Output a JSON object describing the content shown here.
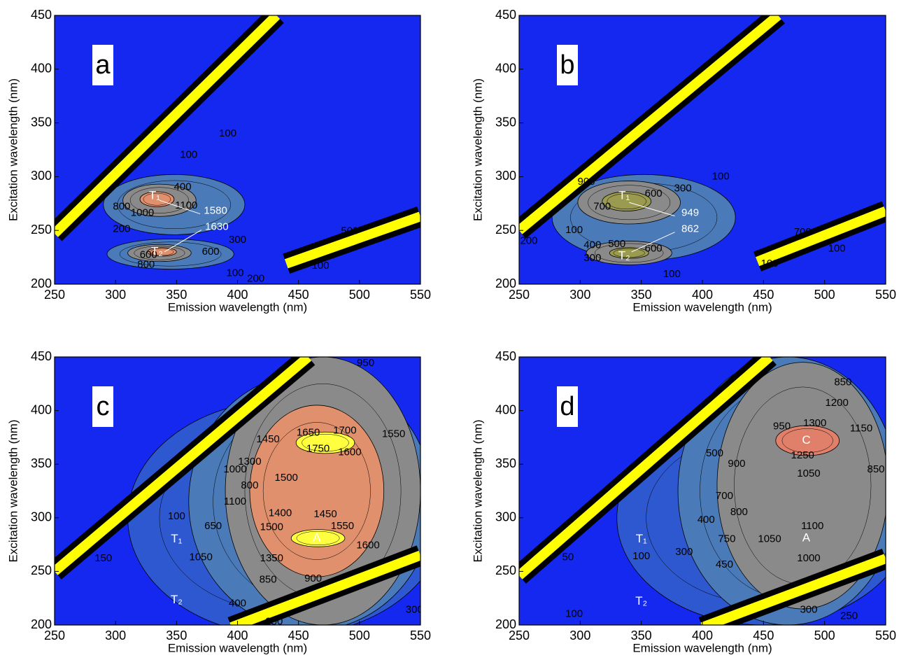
{
  "chart_data": [
    {
      "type": "contour",
      "panel": "a",
      "xlabel": "Emission wavelength (nm)",
      "ylabel": "Excitation wavelength (nm)",
      "xlim": [
        250,
        550
      ],
      "ylim": [
        200,
        450
      ],
      "xticks": [
        250,
        300,
        350,
        400,
        450,
        500,
        550
      ],
      "yticks": [
        200,
        250,
        300,
        350,
        400,
        450
      ],
      "background": "#1428f0",
      "bands": [
        {
          "x": [
            250,
            432
          ],
          "y": [
            247,
            450
          ]
        },
        {
          "x": [
            440,
            550
          ],
          "y": [
            219,
            263
          ]
        }
      ],
      "regions": [
        {
          "level": 200,
          "cx": 348,
          "cy": 274,
          "rx": 58,
          "ry": 28,
          "color": "#4a7ab8"
        },
        {
          "level": 200,
          "cx": 345,
          "cy": 228,
          "rx": 52,
          "ry": 14,
          "color": "#4a7ab8"
        },
        {
          "level": 800,
          "cx": 336,
          "cy": 278,
          "rx": 30,
          "ry": 15,
          "color": "#8a8a8a"
        },
        {
          "level": 800,
          "cx": 336,
          "cy": 229,
          "rx": 26,
          "ry": 8,
          "color": "#8a8a8a"
        },
        {
          "level": 1300,
          "cx": 334,
          "cy": 279,
          "rx": 14,
          "ry": 7,
          "color": "#e0906c"
        },
        {
          "level": 1300,
          "cx": 338,
          "cy": 230,
          "rx": 12,
          "ry": 4,
          "color": "#e0906c"
        }
      ],
      "contour_labels": [
        {
          "value": 1000,
          "x": 322,
          "y": 266
        },
        {
          "value": 1100,
          "x": 358,
          "y": 273
        },
        {
          "value": 800,
          "x": 305,
          "y": 272
        },
        {
          "value": 400,
          "x": 355,
          "y": 290
        },
        {
          "value": 600,
          "x": 327,
          "y": 227
        },
        {
          "value": 800,
          "x": 325,
          "y": 218
        },
        {
          "value": 300,
          "x": 400,
          "y": 241
        },
        {
          "value": 100,
          "x": 398,
          "y": 210
        },
        {
          "value": 200,
          "x": 415,
          "y": 205
        },
        {
          "value": 100,
          "x": 468,
          "y": 217
        },
        {
          "value": 100,
          "x": 392,
          "y": 340
        },
        {
          "value": 100,
          "x": 360,
          "y": 320
        },
        {
          "value": 200,
          "x": 305,
          "y": 251
        },
        {
          "value": 500,
          "x": 492,
          "y": 249
        },
        {
          "value": 600,
          "x": 378,
          "y": 230
        }
      ],
      "peaks": [
        {
          "label": "T₁",
          "x": 332,
          "y": 282
        },
        {
          "label": "T₂",
          "x": 334,
          "y": 230
        }
      ],
      "callouts": [
        {
          "value": 1580,
          "x": 382,
          "y": 268,
          "target": [
            336,
            278
          ]
        },
        {
          "value": 1630,
          "x": 383,
          "y": 253,
          "target": [
            340,
            230
          ]
        }
      ]
    },
    {
      "type": "contour",
      "panel": "b",
      "xlabel": "Emission wavelength (nm)",
      "ylabel": "Excitation wavelength (nm)",
      "xlim": [
        250,
        550
      ],
      "ylim": [
        200,
        450
      ],
      "xticks": [
        250,
        300,
        350,
        400,
        450,
        500,
        550
      ],
      "yticks": [
        200,
        250,
        300,
        350,
        400,
        450
      ],
      "background": "#1428f0",
      "bands": [
        {
          "x": [
            250,
            462
          ],
          "y": [
            250,
            450
          ]
        },
        {
          "x": [
            445,
            550
          ],
          "y": [
            221,
            268
          ]
        }
      ],
      "regions": [
        {
          "level": 100,
          "cx": 352,
          "cy": 262,
          "rx": 75,
          "ry": 40,
          "color": "#4a7ab8"
        },
        {
          "level": 300,
          "cx": 340,
          "cy": 276,
          "rx": 42,
          "ry": 20,
          "color": "#8a8a8a"
        },
        {
          "level": 300,
          "cx": 340,
          "cy": 229,
          "rx": 35,
          "ry": 11,
          "color": "#8a8a8a"
        },
        {
          "level": 700,
          "cx": 338,
          "cy": 277,
          "rx": 20,
          "ry": 9,
          "color": "#9a9a50"
        },
        {
          "level": 600,
          "cx": 340,
          "cy": 229,
          "rx": 16,
          "ry": 5,
          "color": "#9a9a50"
        }
      ],
      "contour_labels": [
        {
          "value": 700,
          "x": 318,
          "y": 272
        },
        {
          "value": 600,
          "x": 360,
          "y": 284
        },
        {
          "value": 300,
          "x": 384,
          "y": 289
        },
        {
          "value": 400,
          "x": 310,
          "y": 236
        },
        {
          "value": 500,
          "x": 330,
          "y": 237
        },
        {
          "value": 600,
          "x": 360,
          "y": 233
        },
        {
          "value": 300,
          "x": 310,
          "y": 224
        },
        {
          "value": 100,
          "x": 375,
          "y": 209
        },
        {
          "value": 100,
          "x": 295,
          "y": 250
        },
        {
          "value": 200,
          "x": 258,
          "y": 240
        },
        {
          "value": 100,
          "x": 455,
          "y": 219
        },
        {
          "value": 700,
          "x": 482,
          "y": 248
        },
        {
          "value": 100,
          "x": 510,
          "y": 233
        },
        {
          "value": 100,
          "x": 415,
          "y": 300
        },
        {
          "value": 900,
          "x": 305,
          "y": 295
        }
      ],
      "peaks": [
        {
          "label": "T₁",
          "x": 336,
          "y": 282
        },
        {
          "label": "T₂",
          "x": 336,
          "y": 226
        }
      ],
      "callouts": [
        {
          "value": 949,
          "x": 390,
          "y": 266,
          "target": [
            340,
            276
          ]
        },
        {
          "value": 862,
          "x": 390,
          "y": 251,
          "target": [
            342,
            230
          ]
        }
      ]
    },
    {
      "type": "contour",
      "panel": "c",
      "xlabel": "Emission wavelength (nm)",
      "ylabel": "Excitation wavelength (nm)",
      "xlim": [
        250,
        550
      ],
      "ylim": [
        200,
        450
      ],
      "xticks": [
        250,
        300,
        350,
        400,
        450,
        500,
        550
      ],
      "yticks": [
        200,
        250,
        300,
        350,
        400,
        450
      ],
      "background": "#1428f0",
      "bands": [
        {
          "x": [
            250,
            458
          ],
          "y": [
            250,
            450
          ]
        },
        {
          "x": [
            395,
            550
          ],
          "y": [
            198,
            265
          ]
        }
      ],
      "regions": [
        {
          "level": 100,
          "cx": 440,
          "cy": 300,
          "rx": 130,
          "ry": 110,
          "color": "#2e58d0"
        },
        {
          "level": 300,
          "cx": 460,
          "cy": 315,
          "rx": 100,
          "ry": 120,
          "color": "#4a7ab8"
        },
        {
          "level": 750,
          "cx": 470,
          "cy": 325,
          "rx": 80,
          "ry": 125,
          "color": "#8a8a8a"
        },
        {
          "level": 1300,
          "cx": 465,
          "cy": 325,
          "rx": 55,
          "ry": 80,
          "color": "#e0906c"
        },
        {
          "level": 1700,
          "cx": 472,
          "cy": 370,
          "rx": 24,
          "ry": 10,
          "color": "#ffff40"
        },
        {
          "level": 1600,
          "cx": 466,
          "cy": 281,
          "rx": 22,
          "ry": 8,
          "color": "#ffff40"
        }
      ],
      "contour_labels": [
        {
          "value": 1650,
          "x": 458,
          "y": 379
        },
        {
          "value": 1700,
          "x": 488,
          "y": 381
        },
        {
          "value": 1750,
          "x": 466,
          "y": 364
        },
        {
          "value": 1600,
          "x": 492,
          "y": 361
        },
        {
          "value": 1550,
          "x": 528,
          "y": 378
        },
        {
          "value": 1450,
          "x": 425,
          "y": 373
        },
        {
          "value": 1300,
          "x": 410,
          "y": 352
        },
        {
          "value": 1500,
          "x": 440,
          "y": 337
        },
        {
          "value": 1400,
          "x": 435,
          "y": 304
        },
        {
          "value": 1450,
          "x": 472,
          "y": 303
        },
        {
          "value": 1550,
          "x": 486,
          "y": 292
        },
        {
          "value": 1500,
          "x": 428,
          "y": 291
        },
        {
          "value": 1600,
          "x": 507,
          "y": 274
        },
        {
          "value": 1350,
          "x": 428,
          "y": 262
        },
        {
          "value": 1050,
          "x": 370,
          "y": 263
        },
        {
          "value": 1100,
          "x": 398,
          "y": 315
        },
        {
          "value": 1000,
          "x": 398,
          "y": 345
        },
        {
          "value": 800,
          "x": 410,
          "y": 330
        },
        {
          "value": 950,
          "x": 505,
          "y": 444
        },
        {
          "value": 850,
          "x": 425,
          "y": 242
        },
        {
          "value": 900,
          "x": 462,
          "y": 243
        },
        {
          "value": 400,
          "x": 400,
          "y": 220
        },
        {
          "value": 250,
          "x": 430,
          "y": 203
        },
        {
          "value": 300,
          "x": 545,
          "y": 214
        },
        {
          "value": 150,
          "x": 290,
          "y": 262
        },
        {
          "value": 100,
          "x": 350,
          "y": 301
        },
        {
          "value": 650,
          "x": 380,
          "y": 292
        }
      ],
      "peaks": [
        {
          "label": "T₁",
          "x": 350,
          "y": 280
        },
        {
          "label": "T₂",
          "x": 350,
          "y": 223
        },
        {
          "label": "A",
          "x": 465,
          "y": 281
        }
      ],
      "callouts": []
    },
    {
      "type": "contour",
      "panel": "d",
      "xlabel": "Emission wavelength (nm)",
      "ylabel": "Excitation wavelength (nm)",
      "xlim": [
        250,
        550
      ],
      "ylim": [
        200,
        450
      ],
      "xticks": [
        250,
        300,
        350,
        400,
        450,
        500,
        550
      ],
      "yticks": [
        200,
        250,
        300,
        350,
        400,
        450
      ],
      "background": "#1428f0",
      "bands": [
        {
          "x": [
            250,
            455
          ],
          "y": [
            246,
            450
          ]
        },
        {
          "x": [
            400,
            550
          ],
          "y": [
            198,
            262
          ]
        }
      ],
      "regions": [
        {
          "level": 100,
          "cx": 450,
          "cy": 300,
          "rx": 120,
          "ry": 100,
          "color": "#2e58d0"
        },
        {
          "level": 300,
          "cx": 470,
          "cy": 325,
          "rx": 90,
          "ry": 125,
          "color": "#4a7ab8"
        },
        {
          "level": 800,
          "cx": 482,
          "cy": 330,
          "rx": 70,
          "ry": 115,
          "color": "#8a8a8a"
        },
        {
          "level": 1250,
          "cx": 486,
          "cy": 372,
          "rx": 26,
          "ry": 14,
          "color": "#e0806a"
        }
      ],
      "contour_labels": [
        {
          "value": 1300,
          "x": 492,
          "y": 388
        },
        {
          "value": 1250,
          "x": 482,
          "y": 358
        },
        {
          "value": 1200,
          "x": 510,
          "y": 407
        },
        {
          "value": 1150,
          "x": 530,
          "y": 383
        },
        {
          "value": 1050,
          "x": 487,
          "y": 341
        },
        {
          "value": 1100,
          "x": 490,
          "y": 292
        },
        {
          "value": 1050,
          "x": 455,
          "y": 280
        },
        {
          "value": 1000,
          "x": 487,
          "y": 262
        },
        {
          "value": 900,
          "x": 428,
          "y": 350
        },
        {
          "value": 950,
          "x": 465,
          "y": 385
        },
        {
          "value": 850,
          "x": 515,
          "y": 426
        },
        {
          "value": 750,
          "x": 420,
          "y": 280
        },
        {
          "value": 700,
          "x": 418,
          "y": 320
        },
        {
          "value": 800,
          "x": 430,
          "y": 305
        },
        {
          "value": 400,
          "x": 403,
          "y": 298
        },
        {
          "value": 450,
          "x": 418,
          "y": 256
        },
        {
          "value": 300,
          "x": 385,
          "y": 268
        },
        {
          "value": 50,
          "x": 290,
          "y": 263
        },
        {
          "value": 100,
          "x": 350,
          "y": 264
        },
        {
          "value": 250,
          "x": 520,
          "y": 208
        },
        {
          "value": 300,
          "x": 487,
          "y": 214
        },
        {
          "value": 850,
          "x": 542,
          "y": 345
        },
        {
          "value": 100,
          "x": 295,
          "y": 210
        },
        {
          "value": 500,
          "x": 410,
          "y": 360
        }
      ],
      "peaks": [
        {
          "label": "T₁",
          "x": 350,
          "y": 280
        },
        {
          "label": "T₂",
          "x": 350,
          "y": 222
        },
        {
          "label": "A",
          "x": 485,
          "y": 281
        },
        {
          "label": "C",
          "x": 485,
          "y": 372
        }
      ],
      "callouts": []
    }
  ]
}
